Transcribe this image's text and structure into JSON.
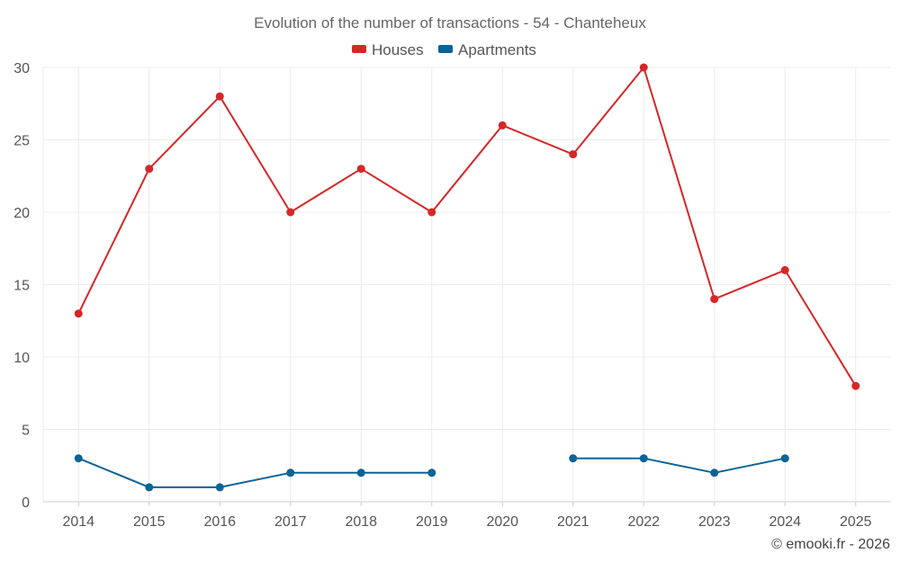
{
  "chart_data": {
    "type": "line",
    "title": "Evolution of the number of transactions - 54 - Chanteheux",
    "categories": [
      "2014",
      "2015",
      "2016",
      "2017",
      "2018",
      "2019",
      "2020",
      "2021",
      "2022",
      "2023",
      "2024",
      "2025"
    ],
    "series": [
      {
        "name": "Houses",
        "color": "#d62728",
        "values": [
          13,
          23,
          28,
          20,
          23,
          20,
          26,
          24,
          30,
          14,
          16,
          8
        ]
      },
      {
        "name": "Apartments",
        "color": "#0a6496",
        "values": [
          3,
          1,
          1,
          2,
          2,
          2,
          null,
          3,
          3,
          2,
          3,
          null
        ]
      }
    ],
    "ylim": [
      0,
      30
    ],
    "yticks": [
      0,
      5,
      10,
      15,
      20,
      25,
      30
    ],
    "xlabel": "",
    "ylabel": "",
    "grid": true,
    "legend": "top-center"
  },
  "watermark": "© emooki.fr - 2026"
}
